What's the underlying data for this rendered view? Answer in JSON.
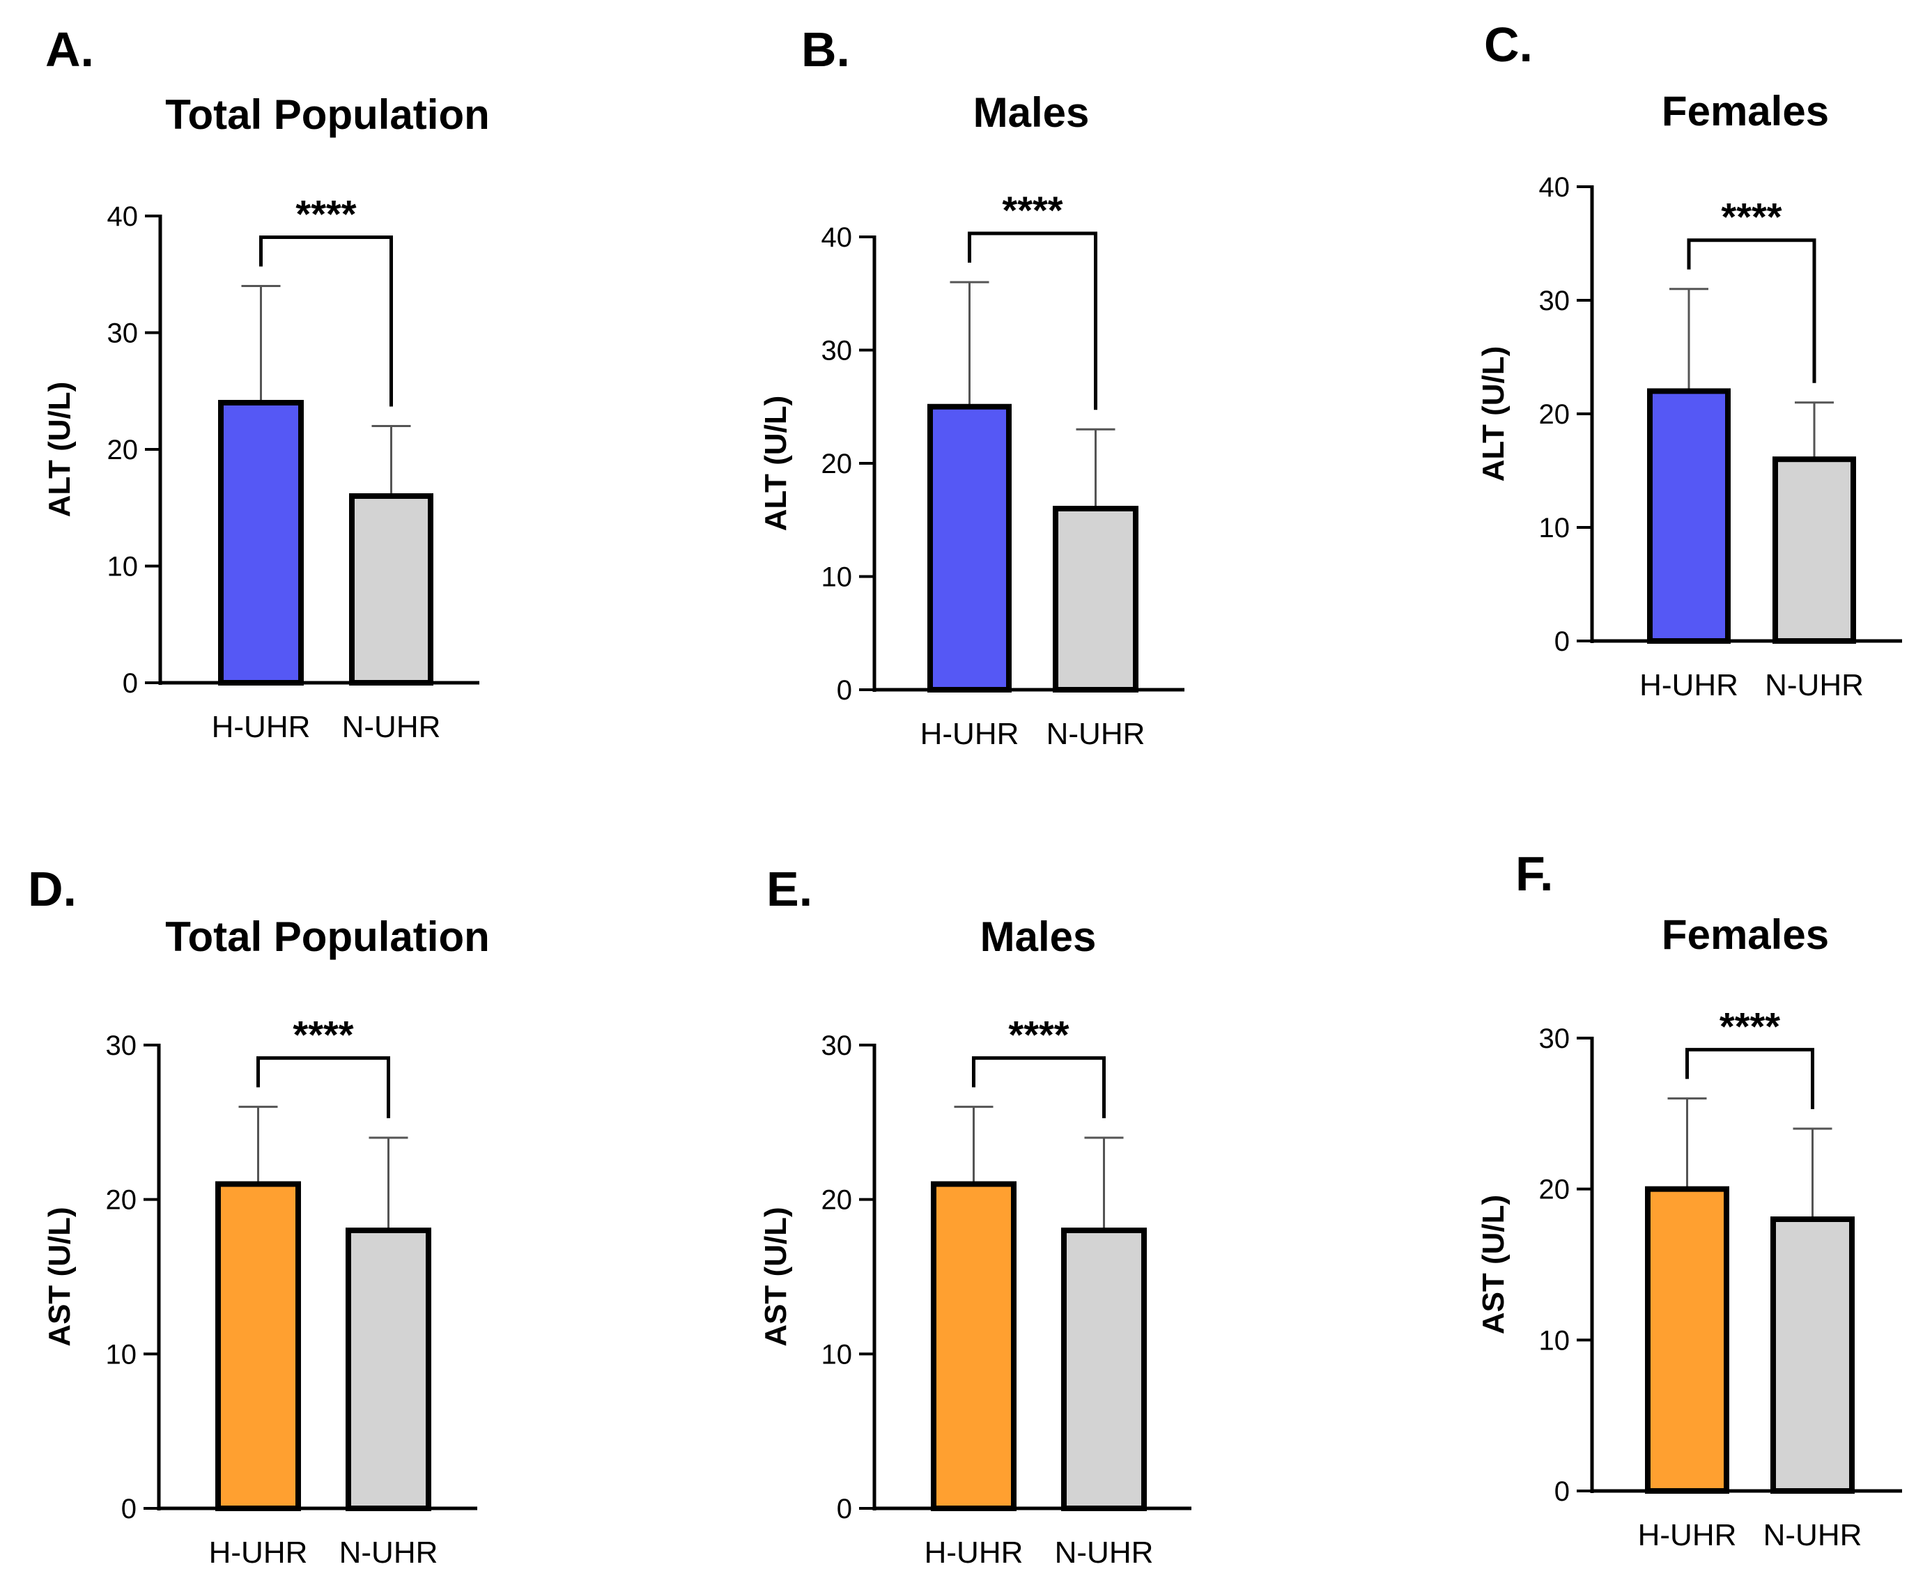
{
  "colors": {
    "alt_high": "#5558F5",
    "ast_high": "#FFA030",
    "normal": "#D3D3D3",
    "outline": "#000000",
    "error_bar": "#555555"
  },
  "chart_data": [
    {
      "type": "bar",
      "panel": "A.",
      "title": "Total Population",
      "xlabel": "",
      "ylabel": "ALT (U/L)",
      "ylim": [
        0,
        40
      ],
      "yticks": [
        "0",
        "10",
        "20",
        "30",
        "40"
      ],
      "categories": [
        "H-UHR",
        "N-UHR"
      ],
      "values": [
        24,
        16
      ],
      "errors": [
        10,
        6
      ],
      "significance": "****",
      "bar_colors": [
        "alt_high",
        "normal"
      ]
    },
    {
      "type": "bar",
      "panel": "B.",
      "title": "Males",
      "xlabel": "",
      "ylabel": "ALT (U/L)",
      "ylim": [
        0,
        40
      ],
      "yticks": [
        "0",
        "10",
        "20",
        "30",
        "40"
      ],
      "categories": [
        "H-UHR",
        "N-UHR"
      ],
      "values": [
        25,
        16
      ],
      "errors": [
        11,
        7
      ],
      "significance": "****",
      "bar_colors": [
        "alt_high",
        "normal"
      ]
    },
    {
      "type": "bar",
      "panel": "C.",
      "title": "Females",
      "xlabel": "",
      "ylabel": "ALT (U/L)",
      "ylim": [
        0,
        40
      ],
      "yticks": [
        "0",
        "10",
        "20",
        "30",
        "40"
      ],
      "categories": [
        "H-UHR",
        "N-UHR"
      ],
      "values": [
        22,
        16
      ],
      "errors": [
        9,
        5
      ],
      "significance": "****",
      "bar_colors": [
        "alt_high",
        "normal"
      ]
    },
    {
      "type": "bar",
      "panel": "D.",
      "title": "Total Population",
      "xlabel": "",
      "ylabel": "AST (U/L)",
      "ylim": [
        0,
        30
      ],
      "yticks": [
        "0",
        "10",
        "20",
        "30"
      ],
      "categories": [
        "H-UHR",
        "N-UHR"
      ],
      "values": [
        21,
        18
      ],
      "errors": [
        5,
        6
      ],
      "significance": "****",
      "bar_colors": [
        "ast_high",
        "normal"
      ]
    },
    {
      "type": "bar",
      "panel": "E.",
      "title": "Males",
      "xlabel": "",
      "ylabel": "AST (U/L)",
      "ylim": [
        0,
        30
      ],
      "yticks": [
        "0",
        "10",
        "20",
        "30"
      ],
      "categories": [
        "H-UHR",
        "N-UHR"
      ],
      "values": [
        21,
        18
      ],
      "errors": [
        5,
        6
      ],
      "significance": "****",
      "bar_colors": [
        "ast_high",
        "normal"
      ]
    },
    {
      "type": "bar",
      "panel": "F.",
      "title": "Females",
      "xlabel": "",
      "ylabel": "AST (U/L)",
      "ylim": [
        0,
        30
      ],
      "yticks": [
        "0",
        "10",
        "20",
        "30"
      ],
      "categories": [
        "H-UHR",
        "N-UHR"
      ],
      "values": [
        20,
        18
      ],
      "errors": [
        6,
        6
      ],
      "significance": "****",
      "bar_colors": [
        "ast_high",
        "normal"
      ]
    }
  ]
}
